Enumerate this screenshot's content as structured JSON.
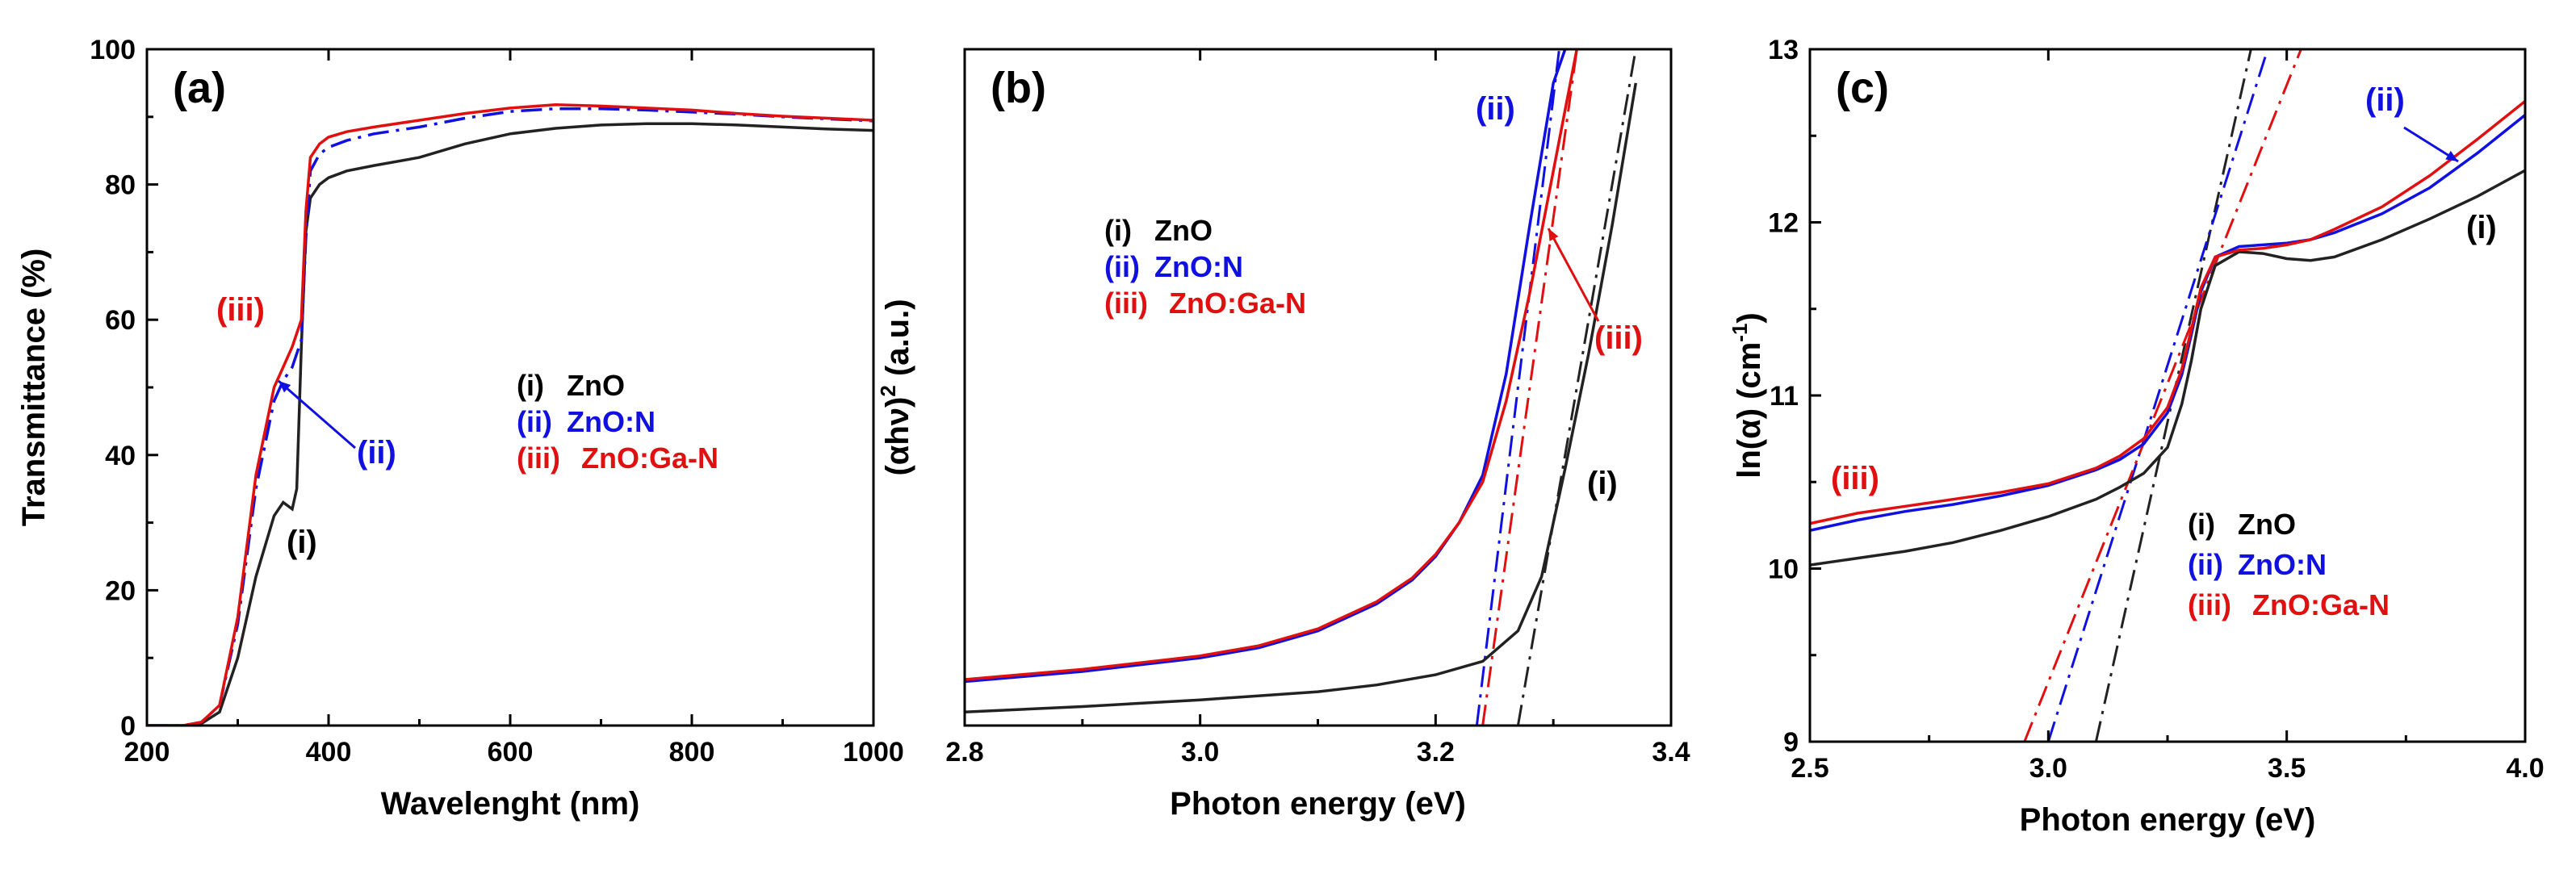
{
  "figure_title": "",
  "colors": {
    "zno": "#222222",
    "zno_n": "#1010e0",
    "zno_ga_n": "#e01010"
  },
  "chart_data": [
    {
      "type": "line",
      "panel_label": "(a)",
      "xlabel": "Wavelenght (nm)",
      "ylabel": "Transmittance (%)",
      "xlim": [
        200,
        1000
      ],
      "ylim": [
        0,
        100
      ],
      "xticks": [
        "200",
        "400",
        "600",
        "800",
        "1000"
      ],
      "yticks": [
        "0",
        "20",
        "40",
        "60",
        "80",
        "100"
      ],
      "legend": {
        "position": "center-right",
        "entries": [
          "ZnO",
          "ZnO:N",
          "ZnO:Ga-N"
        ],
        "markers": [
          "(i)",
          "(ii)",
          "(iii)"
        ]
      },
      "annotations": [
        "(i)",
        "(ii)",
        "(iii)"
      ],
      "series": [
        {
          "name": "ZnO",
          "marker": "(i)",
          "color": "#222222",
          "dash": "solid",
          "x": [
            200,
            240,
            260,
            280,
            300,
            320,
            340,
            350,
            360,
            365,
            370,
            375,
            380,
            390,
            400,
            420,
            450,
            500,
            550,
            600,
            650,
            700,
            750,
            800,
            850,
            900,
            950,
            1000
          ],
          "values": [
            0,
            0,
            0.3,
            2,
            10,
            22,
            31,
            33,
            32,
            35,
            56,
            73,
            78,
            80,
            81,
            82,
            82.8,
            84,
            86,
            87.5,
            88.3,
            88.8,
            89,
            89,
            88.8,
            88.5,
            88.2,
            88
          ]
        },
        {
          "name": "ZnO:N",
          "marker": "(ii)",
          "color": "#1010e0",
          "dash": "dashdot",
          "x": [
            200,
            240,
            260,
            280,
            300,
            320,
            340,
            350,
            360,
            370,
            375,
            380,
            390,
            400,
            420,
            450,
            500,
            550,
            600,
            650,
            700,
            750,
            800,
            850,
            900,
            950,
            1000
          ],
          "values": [
            0,
            0,
            0.5,
            3,
            15,
            35,
            48,
            51,
            53,
            57,
            72,
            82,
            84.5,
            85.5,
            86.5,
            87.5,
            88.5,
            89.8,
            90.8,
            91.2,
            91.2,
            91,
            90.7,
            90.4,
            90,
            89.7,
            89.4
          ]
        },
        {
          "name": "ZnO:Ga-N",
          "marker": "(iii)",
          "color": "#e01010",
          "dash": "solid",
          "x": [
            200,
            240,
            260,
            280,
            300,
            320,
            340,
            350,
            360,
            370,
            375,
            380,
            390,
            400,
            420,
            450,
            500,
            550,
            600,
            650,
            700,
            750,
            800,
            850,
            900,
            950,
            1000
          ],
          "values": [
            0,
            0,
            0.5,
            3,
            16,
            37,
            50,
            53,
            56,
            60,
            76,
            84,
            86,
            87,
            87.8,
            88.5,
            89.5,
            90.5,
            91.3,
            91.8,
            91.6,
            91.3,
            91,
            90.5,
            90.1,
            89.8,
            89.5
          ]
        }
      ]
    },
    {
      "type": "line",
      "panel_label": "(b)",
      "xlabel": "Photon energy (eV)",
      "ylabel": "(αhν)² (a.u.)",
      "ylabel_base": "(αhν)",
      "ylabel_sup": "2",
      "ylabel_unit": "(a.u.)",
      "xlim": [
        2.8,
        3.4
      ],
      "ylim": [
        0,
        100
      ],
      "xticks": [
        "2.8",
        "3.0",
        "3.2",
        "3.4"
      ],
      "legend": {
        "position": "upper-left",
        "entries": [
          "ZnO",
          "ZnO:N",
          "ZnO:Ga-N"
        ],
        "markers": [
          "(i)",
          "(ii)",
          "(iii)"
        ]
      },
      "annotations": [
        "(i)",
        "(ii)",
        "(iii)"
      ],
      "series": [
        {
          "name": "ZnO",
          "marker": "(i)",
          "color": "#222222",
          "x": [
            2.8,
            2.9,
            3.0,
            3.1,
            3.15,
            3.2,
            3.24,
            3.27,
            3.29,
            3.31,
            3.33,
            3.35,
            3.37
          ],
          "values": [
            2.0,
            2.8,
            3.8,
            5.0,
            6.0,
            7.5,
            9.5,
            14,
            22,
            38,
            55,
            74,
            95
          ]
        },
        {
          "name": "ZnO:N",
          "marker": "(ii)",
          "color": "#1010e0",
          "x": [
            2.8,
            2.9,
            3.0,
            3.05,
            3.1,
            3.15,
            3.18,
            3.2,
            3.22,
            3.24,
            3.26,
            3.28,
            3.3,
            3.31
          ],
          "values": [
            6.5,
            8.0,
            10,
            11.5,
            14,
            18,
            21.5,
            25,
            30,
            37,
            52,
            74,
            95,
            100
          ]
        },
        {
          "name": "ZnO:Ga-N",
          "marker": "(iii)",
          "color": "#e01010",
          "x": [
            2.8,
            2.9,
            3.0,
            3.05,
            3.1,
            3.15,
            3.18,
            3.2,
            3.22,
            3.24,
            3.26,
            3.28,
            3.3,
            3.32
          ],
          "values": [
            6.8,
            8.3,
            10.3,
            11.8,
            14.3,
            18.3,
            21.8,
            25.3,
            30,
            36,
            48,
            64,
            82,
            100
          ]
        }
      ],
      "fit_lines": [
        {
          "name": "ZnO fit",
          "color": "#222222",
          "x": [
            3.27,
            3.37
          ],
          "values": [
            0,
            100
          ]
        },
        {
          "name": "ZnO:N fit",
          "color": "#1010e0",
          "x": [
            3.235,
            3.305
          ],
          "values": [
            0,
            100
          ]
        },
        {
          "name": "ZnO:Ga-N fit",
          "color": "#e01010",
          "x": [
            3.24,
            3.32
          ],
          "values": [
            0,
            100
          ]
        }
      ]
    },
    {
      "type": "line",
      "panel_label": "(c)",
      "xlabel": "Photon energy (eV)",
      "ylabel": "ln(α) (cm⁻¹)",
      "ylabel_base": "ln(α) (cm",
      "ylabel_sup": "-1",
      "ylabel_close": ")",
      "xlim": [
        2.5,
        4.0
      ],
      "ylim": [
        9,
        13
      ],
      "xticks": [
        "2.5",
        "3.0",
        "3.5",
        "4.0"
      ],
      "yticks": [
        "9",
        "10",
        "11",
        "12",
        "13"
      ],
      "legend": {
        "position": "lower-right",
        "entries": [
          "ZnO",
          "ZnO:N",
          "ZnO:Ga-N"
        ],
        "markers": [
          "(i)",
          "(ii)",
          "(iii)"
        ]
      },
      "annotations": [
        "(i)",
        "(ii)",
        "(iii)"
      ],
      "series": [
        {
          "name": "ZnO",
          "marker": "(i)",
          "color": "#222222",
          "x": [
            2.5,
            2.6,
            2.7,
            2.8,
            2.9,
            3.0,
            3.1,
            3.15,
            3.2,
            3.25,
            3.28,
            3.3,
            3.32,
            3.35,
            3.4,
            3.45,
            3.5,
            3.55,
            3.6,
            3.7,
            3.8,
            3.9,
            4.0
          ],
          "values": [
            10.02,
            10.06,
            10.1,
            10.15,
            10.22,
            10.3,
            10.4,
            10.47,
            10.55,
            10.7,
            10.95,
            11.2,
            11.5,
            11.75,
            11.83,
            11.82,
            11.79,
            11.78,
            11.8,
            11.9,
            12.02,
            12.15,
            12.3
          ]
        },
        {
          "name": "ZnO:N",
          "marker": "(ii)",
          "color": "#1010e0",
          "x": [
            2.5,
            2.6,
            2.7,
            2.8,
            2.9,
            3.0,
            3.1,
            3.15,
            3.2,
            3.25,
            3.28,
            3.3,
            3.32,
            3.35,
            3.4,
            3.45,
            3.5,
            3.55,
            3.6,
            3.7,
            3.8,
            3.9,
            4.0
          ],
          "values": [
            10.22,
            10.28,
            10.33,
            10.37,
            10.42,
            10.48,
            10.57,
            10.63,
            10.72,
            10.9,
            11.12,
            11.35,
            11.6,
            11.8,
            11.86,
            11.87,
            11.88,
            11.9,
            11.94,
            12.05,
            12.2,
            12.4,
            12.62
          ]
        },
        {
          "name": "ZnO:Ga-N",
          "marker": "(iii)",
          "color": "#e01010",
          "x": [
            2.5,
            2.6,
            2.7,
            2.8,
            2.9,
            3.0,
            3.1,
            3.15,
            3.2,
            3.25,
            3.28,
            3.3,
            3.32,
            3.35,
            3.4,
            3.45,
            3.5,
            3.55,
            3.6,
            3.7,
            3.8,
            3.9,
            4.0
          ],
          "values": [
            10.26,
            10.32,
            10.36,
            10.4,
            10.44,
            10.49,
            10.58,
            10.65,
            10.75,
            10.93,
            11.15,
            11.38,
            11.62,
            11.8,
            11.84,
            11.85,
            11.87,
            11.9,
            11.96,
            12.09,
            12.27,
            12.48,
            12.7
          ]
        }
      ],
      "fit_lines": [
        {
          "name": "ZnO fit",
          "color": "#222222",
          "x": [
            3.1,
            3.425
          ],
          "values": [
            9,
            13
          ]
        },
        {
          "name": "ZnO:N fit",
          "color": "#1010e0",
          "x": [
            3.0,
            3.46
          ],
          "values": [
            9,
            13
          ]
        },
        {
          "name": "ZnO:Ga-N fit",
          "color": "#e01010",
          "x": [
            2.95,
            3.53
          ],
          "values": [
            9,
            13
          ]
        }
      ]
    }
  ]
}
